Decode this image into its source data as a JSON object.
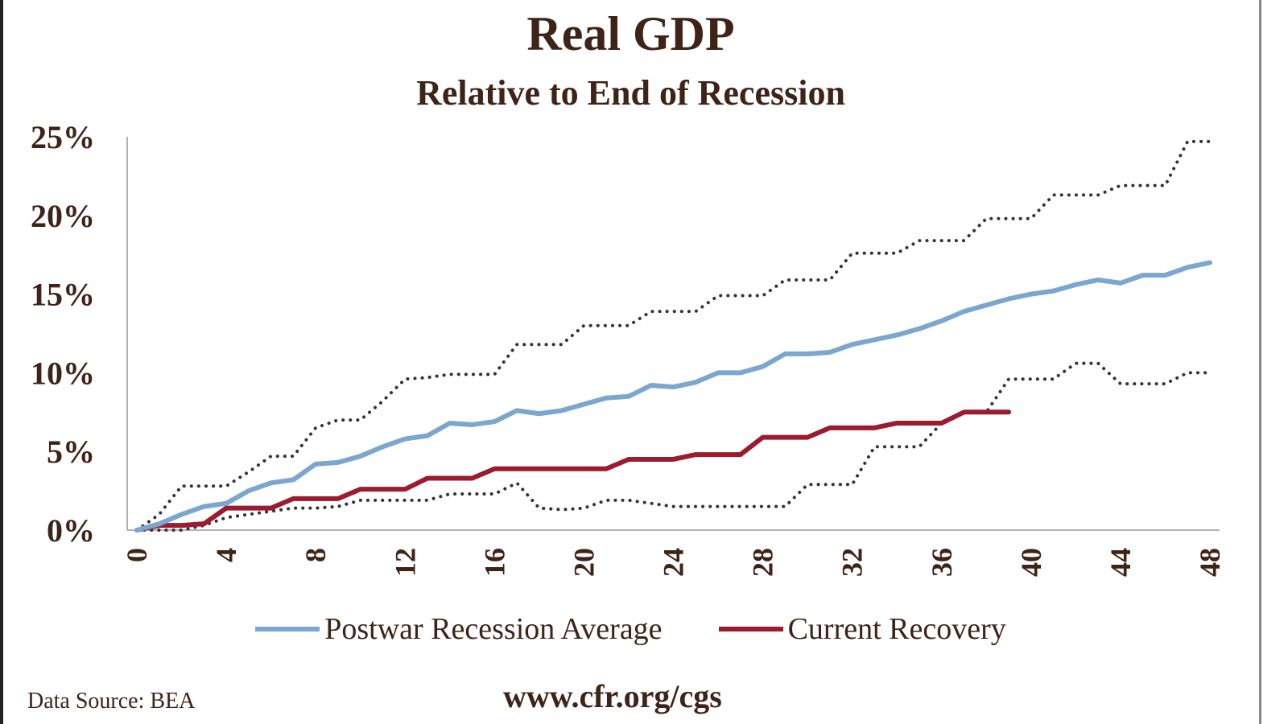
{
  "chart_data": {
    "type": "line",
    "title": "Real GDP",
    "subtitle": "Relative to End of Recession",
    "xlabel": "",
    "ylabel": "",
    "xlim": [
      0,
      48
    ],
    "ylim": [
      0,
      25
    ],
    "x_ticks": [
      "0",
      "4",
      "8",
      "12",
      "16",
      "20",
      "24",
      "28",
      "32",
      "36",
      "40",
      "44",
      "48"
    ],
    "y_ticks": [
      "0%",
      "5%",
      "10%",
      "15%",
      "20%",
      "25%"
    ],
    "grid": false,
    "legend_position": "bottom",
    "series": [
      {
        "name": "Postwar Recession Average",
        "color": "#7ba7cf",
        "style": "solid",
        "in_legend": true,
        "values": [
          0,
          0.4,
          1.0,
          1.5,
          1.7,
          2.5,
          3.0,
          3.2,
          4.2,
          4.3,
          4.7,
          5.3,
          5.8,
          6.0,
          6.8,
          6.7,
          6.9,
          7.6,
          7.4,
          7.6,
          8.0,
          8.4,
          8.5,
          9.2,
          9.1,
          9.4,
          10.0,
          10.0,
          10.4,
          11.2,
          11.2,
          11.3,
          11.8,
          12.1,
          12.4,
          12.8,
          13.3,
          13.9,
          14.3,
          14.7,
          15.0,
          15.2,
          15.6,
          15.9,
          15.7,
          16.2,
          16.2,
          16.7,
          17.0
        ]
      },
      {
        "name": "Current Recovery",
        "color": "#9b1c31",
        "style": "solid",
        "in_legend": true,
        "values": [
          0,
          0.3,
          0.3,
          0.4,
          1.4,
          1.4,
          1.4,
          2.0,
          2.0,
          2.0,
          2.6,
          2.6,
          2.6,
          3.3,
          3.3,
          3.3,
          3.9,
          3.9,
          3.9,
          3.9,
          3.9,
          3.9,
          4.5,
          4.5,
          4.5,
          4.8,
          4.8,
          4.8,
          5.9,
          5.9,
          5.9,
          6.5,
          6.5,
          6.5,
          6.8,
          6.8,
          6.8,
          7.5,
          7.5,
          7.5
        ]
      },
      {
        "name": "Upper bound",
        "color": "#333333",
        "style": "dotted",
        "in_legend": false,
        "values": [
          0,
          1.0,
          2.8,
          2.8,
          2.8,
          3.7,
          4.7,
          4.7,
          6.5,
          7.0,
          7.0,
          8.2,
          9.6,
          9.7,
          9.9,
          9.9,
          9.9,
          11.8,
          11.8,
          11.8,
          13.0,
          13.0,
          13.0,
          13.9,
          13.9,
          13.9,
          14.9,
          14.9,
          14.9,
          15.9,
          15.9,
          15.9,
          17.6,
          17.6,
          17.6,
          18.4,
          18.4,
          18.4,
          19.8,
          19.8,
          19.8,
          21.3,
          21.3,
          21.3,
          21.9,
          21.9,
          21.9,
          24.7,
          24.7
        ]
      },
      {
        "name": "Lower bound",
        "color": "#333333",
        "style": "dotted",
        "in_legend": false,
        "values": [
          0,
          0,
          0,
          0.3,
          0.8,
          1.0,
          1.2,
          1.4,
          1.4,
          1.5,
          1.9,
          1.9,
          1.9,
          1.9,
          2.3,
          2.3,
          2.3,
          3.0,
          1.4,
          1.3,
          1.4,
          1.9,
          1.9,
          1.7,
          1.5,
          1.5,
          1.5,
          1.5,
          1.5,
          1.5,
          2.9,
          2.9,
          2.9,
          5.3,
          5.3,
          5.3,
          6.8,
          7.5,
          7.5,
          9.6,
          9.6,
          9.6,
          10.6,
          10.6,
          9.3,
          9.3,
          9.3,
          10.0,
          10.0
        ]
      }
    ]
  },
  "footer": {
    "source": "Data Source: BEA",
    "url": "www.cfr.org/cgs"
  }
}
